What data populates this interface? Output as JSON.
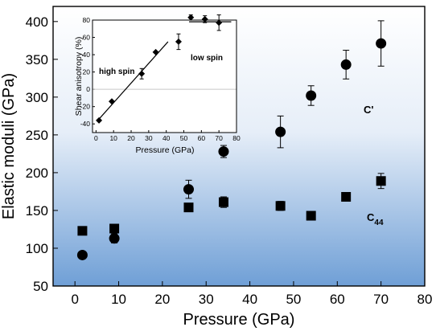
{
  "chart_data": [
    {
      "type": "scatter",
      "xlabel": "Pressure (GPa)",
      "ylabel": "Elastic moduli (GPa)",
      "xlim": [
        -5,
        80
      ],
      "ylim": [
        50,
        420
      ],
      "xticks": [
        "0",
        "10",
        "20",
        "30",
        "40",
        "50",
        "60",
        "70",
        "80"
      ],
      "yticks": [
        "50",
        "100",
        "150",
        "200",
        "250",
        "300",
        "350",
        "400"
      ],
      "background": "vertical gradient, white at top to light blue at bottom",
      "series": [
        {
          "name": "C'",
          "marker": "circle",
          "color": "#000000",
          "points": [
            {
              "x": 1.7,
              "y": 91,
              "err": 3
            },
            {
              "x": 9,
              "y": 113,
              "err": 6
            },
            {
              "x": 26,
              "y": 178,
              "err": 12
            },
            {
              "x": 34,
              "y": 228,
              "err": 8
            },
            {
              "x": 47,
              "y": 254,
              "err": 21
            },
            {
              "x": 54,
              "y": 302,
              "err": 13
            },
            {
              "x": 62,
              "y": 343,
              "err": 19
            },
            {
              "x": 70,
              "y": 371,
              "err": 30
            }
          ]
        },
        {
          "name": "C44",
          "marker": "square",
          "color": "#000000",
          "points": [
            {
              "x": 1.7,
              "y": 123,
              "err": 0
            },
            {
              "x": 9,
              "y": 126,
              "err": 0
            },
            {
              "x": 26,
              "y": 154,
              "err": 0
            },
            {
              "x": 34,
              "y": 161,
              "err": 7
            },
            {
              "x": 47,
              "y": 156,
              "err": 6
            },
            {
              "x": 54,
              "y": 143,
              "err": 0
            },
            {
              "x": 62,
              "y": 168,
              "err": 0
            },
            {
              "x": 70,
              "y": 189,
              "err": 10
            }
          ]
        }
      ],
      "annotations": [
        "C'",
        "C",
        "44"
      ]
    },
    {
      "type": "scatter",
      "position": "inset, top-left",
      "xlabel": "Pressure (GPa)",
      "ylabel": "Shear anisotropy (%)",
      "xlim": [
        -2,
        80
      ],
      "ylim": [
        -50,
        80
      ],
      "xticks": [
        "0",
        "10",
        "20",
        "30",
        "40",
        "50",
        "60",
        "70",
        "80"
      ],
      "yticks": [
        "-40",
        "-20",
        "0",
        "20",
        "40",
        "60",
        "80"
      ],
      "zero_line": true,
      "series": [
        {
          "marker": "diamond",
          "color": "#000000",
          "points": [
            {
              "x": 1.7,
              "y": -36,
              "err": 0
            },
            {
              "x": 9,
              "y": -14,
              "err": 0
            },
            {
              "x": 26,
              "y": 18,
              "err": 6
            },
            {
              "x": 34,
              "y": 43,
              "err": 0
            },
            {
              "x": 47,
              "y": 55,
              "err": 9
            },
            {
              "x": 54,
              "y": 83,
              "err": 3
            },
            {
              "x": 62,
              "y": 81,
              "err": 4
            },
            {
              "x": 70,
              "y": 77,
              "err": 9
            }
          ]
        }
      ],
      "fit_lines": [
        {
          "x": [
            1,
            41
          ],
          "y": [
            -36,
            55
          ]
        },
        {
          "x": [
            53,
            77
          ],
          "y": [
            78,
            78
          ]
        }
      ],
      "annotations": [
        "high spin",
        "low spin"
      ]
    }
  ]
}
